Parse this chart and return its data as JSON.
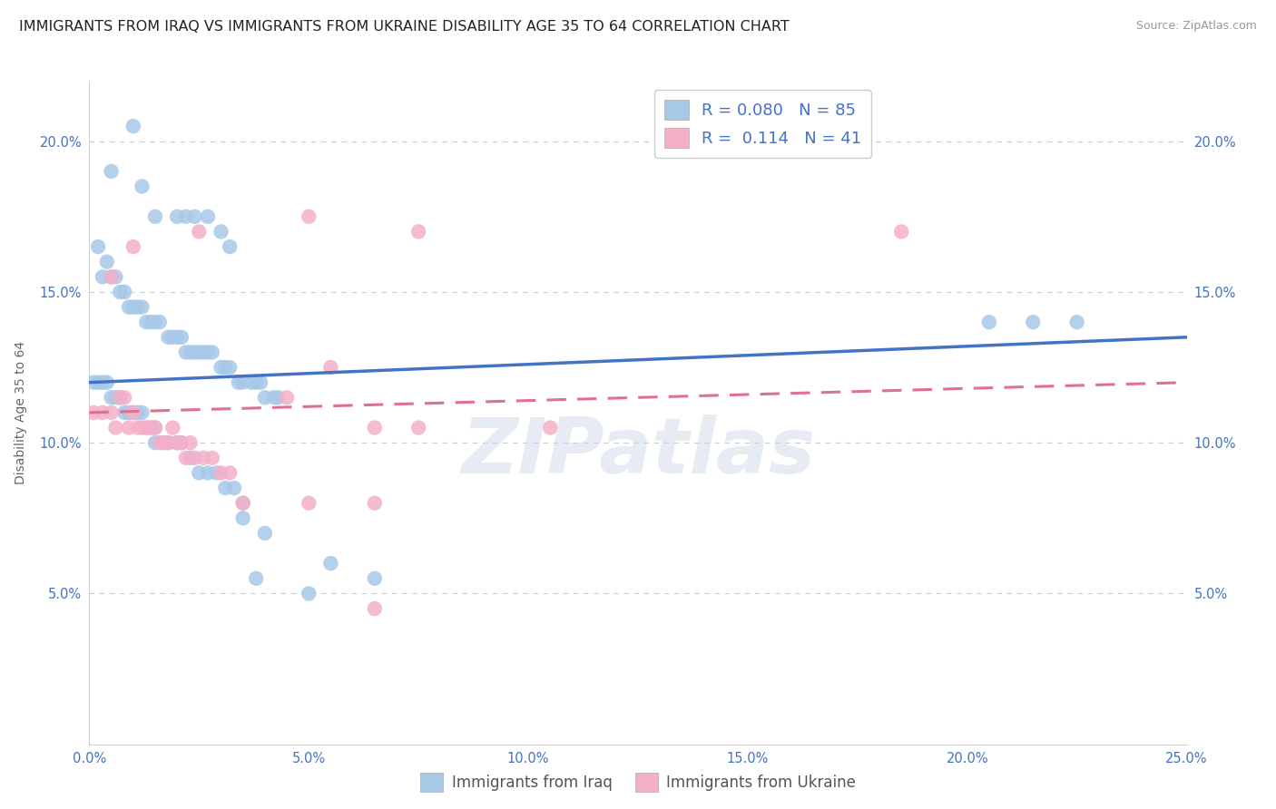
{
  "title": "IMMIGRANTS FROM IRAQ VS IMMIGRANTS FROM UKRAINE DISABILITY AGE 35 TO 64 CORRELATION CHART",
  "source": "Source: ZipAtlas.com",
  "ylabel": "Disability Age 35 to 64",
  "iraq_R": 0.08,
  "iraq_N": 85,
  "ukraine_R": 0.114,
  "ukraine_N": 41,
  "iraq_color": "#a8c8e8",
  "ukraine_color": "#f4b0c8",
  "iraq_line_color": "#4472c4",
  "ukraine_line_color": "#e07090",
  "iraq_x": [
    1.0,
    1.2,
    0.5,
    1.5,
    2.0,
    2.2,
    2.4,
    2.7,
    3.0,
    3.2,
    0.2,
    0.3,
    0.4,
    0.5,
    0.6,
    0.7,
    0.8,
    0.9,
    1.0,
    1.1,
    1.2,
    1.3,
    1.4,
    1.5,
    1.6,
    1.8,
    1.9,
    2.0,
    2.1,
    2.2,
    2.3,
    2.4,
    2.5,
    2.6,
    2.7,
    2.8,
    3.0,
    3.1,
    3.2,
    3.4,
    3.5,
    3.7,
    3.8,
    3.9,
    4.0,
    4.2,
    4.3,
    0.1,
    0.2,
    0.3,
    0.4,
    0.5,
    0.6,
    0.7,
    0.8,
    0.9,
    1.0,
    1.1,
    1.2,
    1.3,
    1.4,
    1.5,
    1.5,
    1.7,
    1.8,
    2.0,
    2.1,
    2.3,
    2.5,
    2.7,
    2.9,
    3.1,
    3.3,
    3.5,
    3.5,
    4.0,
    5.5,
    6.5,
    20.5,
    21.5,
    22.5,
    3.8,
    5.0
  ],
  "iraq_y": [
    20.5,
    18.5,
    19.0,
    17.5,
    17.5,
    17.5,
    17.5,
    17.5,
    17.0,
    16.5,
    16.5,
    15.5,
    16.0,
    15.5,
    15.5,
    15.0,
    15.0,
    14.5,
    14.5,
    14.5,
    14.5,
    14.0,
    14.0,
    14.0,
    14.0,
    13.5,
    13.5,
    13.5,
    13.5,
    13.0,
    13.0,
    13.0,
    13.0,
    13.0,
    13.0,
    13.0,
    12.5,
    12.5,
    12.5,
    12.0,
    12.0,
    12.0,
    12.0,
    12.0,
    11.5,
    11.5,
    11.5,
    12.0,
    12.0,
    12.0,
    12.0,
    11.5,
    11.5,
    11.5,
    11.0,
    11.0,
    11.0,
    11.0,
    11.0,
    10.5,
    10.5,
    10.5,
    10.0,
    10.0,
    10.0,
    10.0,
    10.0,
    9.5,
    9.0,
    9.0,
    9.0,
    8.5,
    8.5,
    8.0,
    7.5,
    7.0,
    6.0,
    5.5,
    14.0,
    14.0,
    14.0,
    5.5,
    5.0
  ],
  "ukraine_x": [
    0.1,
    0.3,
    0.5,
    0.6,
    0.7,
    0.8,
    0.9,
    1.0,
    1.1,
    1.2,
    1.3,
    1.4,
    1.5,
    1.6,
    1.7,
    1.8,
    1.9,
    2.0,
    2.1,
    2.2,
    2.3,
    2.4,
    2.6,
    2.8,
    3.0,
    3.2,
    0.5,
    1.0,
    2.5,
    5.0,
    7.5,
    18.5,
    4.5,
    5.5,
    6.5,
    7.5,
    5.0,
    6.5,
    3.5,
    6.5,
    10.5
  ],
  "ukraine_y": [
    11.0,
    11.0,
    11.0,
    10.5,
    11.5,
    11.5,
    10.5,
    11.0,
    10.5,
    10.5,
    10.5,
    10.5,
    10.5,
    10.0,
    10.0,
    10.0,
    10.5,
    10.0,
    10.0,
    9.5,
    10.0,
    9.5,
    9.5,
    9.5,
    9.0,
    9.0,
    15.5,
    16.5,
    17.0,
    17.5,
    17.0,
    17.0,
    11.5,
    12.5,
    10.5,
    10.5,
    8.0,
    8.0,
    8.0,
    4.5,
    10.5
  ],
  "xlim": [
    0,
    25
  ],
  "ylim": [
    0,
    22
  ],
  "x_ticks": [
    0,
    5,
    10,
    15,
    20,
    25
  ],
  "x_tick_labels": [
    "0.0%",
    "5.0%",
    "10.0%",
    "15.0%",
    "20.0%",
    "25.0%"
  ],
  "y_ticks": [
    0,
    5,
    10,
    15,
    20
  ],
  "y_tick_labels": [
    "",
    "5.0%",
    "10.0%",
    "15.0%",
    "20.0%"
  ],
  "grid_color": "#cccccc",
  "background_color": "#ffffff",
  "watermark": "ZIPatlas",
  "title_fontsize": 11.5,
  "axis_label_fontsize": 10,
  "tick_fontsize": 10.5,
  "legend_fontsize": 13
}
